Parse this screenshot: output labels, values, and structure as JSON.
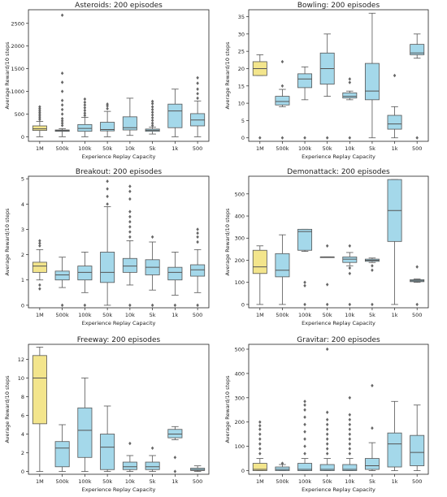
{
  "colors": {
    "highlight": "#f3e58c",
    "box": "#a4d8ea",
    "stroke": "#555555",
    "outlier": "#666666"
  },
  "chart_data": [
    {
      "type": "box",
      "title": "Asteroids: 200 episodes",
      "xlabel": "Experience Replay Capacity",
      "ylabel": "Average Reward/10 steps",
      "categories": [
        "1M",
        "500k",
        "100k",
        "50k",
        "10k",
        "5k",
        "1k",
        "500"
      ],
      "ylim": [
        -100,
        2800
      ],
      "yticks": [
        0,
        500,
        1000,
        1500,
        2000,
        2500
      ],
      "boxes": [
        {
          "whislo": 0,
          "q1": 140,
          "med": 175,
          "q3": 240,
          "whishi": 340,
          "fliers": [
            380,
            420,
            460,
            500,
            540,
            580,
            620,
            660
          ]
        },
        {
          "whislo": 0,
          "q1": 120,
          "med": 135,
          "q3": 150,
          "whishi": 180,
          "fliers": [
            250,
            300,
            350,
            400,
            500,
            600,
            700,
            800,
            1000,
            1200,
            1400,
            2680
          ]
        },
        {
          "whislo": 0,
          "q1": 120,
          "med": 185,
          "q3": 270,
          "whishi": 430,
          "fliers": [
            470,
            520,
            580,
            640,
            700,
            760,
            830
          ]
        },
        {
          "whislo": 0,
          "q1": 130,
          "med": 160,
          "q3": 320,
          "whishi": 560,
          "fliers": [
            620,
            680,
            720
          ]
        },
        {
          "whislo": 30,
          "q1": 150,
          "med": 200,
          "q3": 440,
          "whishi": 850,
          "fliers": []
        },
        {
          "whislo": 60,
          "q1": 120,
          "med": 145,
          "q3": 170,
          "whishi": 210,
          "fliers": [
            250,
            300,
            360,
            420,
            480,
            540,
            600,
            660,
            730,
            780
          ]
        },
        {
          "whislo": 0,
          "q1": 200,
          "med": 570,
          "q3": 720,
          "whishi": 1050,
          "fliers": []
        },
        {
          "whislo": 0,
          "q1": 240,
          "med": 370,
          "q3": 510,
          "whishi": 790,
          "fliers": [
            850,
            950,
            1050,
            1180,
            1300
          ]
        }
      ]
    },
    {
      "type": "box",
      "title": "Bowling: 200 episodes",
      "xlabel": "Experience Replay Capacity",
      "ylabel": "Average Reward/10 steps",
      "categories": [
        "1M",
        "500k",
        "100k",
        "50k",
        "10k",
        "5k",
        "1k",
        "500"
      ],
      "ylim": [
        -1,
        37
      ],
      "yticks": [
        0,
        5,
        10,
        15,
        20,
        25,
        30,
        35
      ],
      "boxes": [
        {
          "whislo": 18,
          "q1": 18,
          "med": 20,
          "q3": 22,
          "whishi": 24,
          "fliers": [
            0
          ]
        },
        {
          "whislo": 9,
          "q1": 9.5,
          "med": 10.5,
          "q3": 12,
          "whishi": 14,
          "fliers": [
            0,
            15,
            22
          ]
        },
        {
          "whislo": 11,
          "q1": 14.5,
          "med": 17,
          "q3": 18.5,
          "whishi": 20.5,
          "fliers": [
            0
          ]
        },
        {
          "whislo": 12,
          "q1": 15.5,
          "med": 20,
          "q3": 24.5,
          "whishi": 30,
          "fliers": [
            0
          ]
        },
        {
          "whislo": 11,
          "q1": 11.5,
          "med": 12,
          "q3": 13,
          "whishi": 13.5,
          "fliers": [
            0,
            16,
            17
          ]
        },
        {
          "whislo": 0,
          "q1": 11,
          "med": 13.5,
          "q3": 21.5,
          "whishi": 36,
          "fliers": []
        },
        {
          "whislo": 0,
          "q1": 2.5,
          "med": 4,
          "q3": 6.5,
          "whishi": 9,
          "fliers": [
            18
          ]
        },
        {
          "whislo": 23,
          "q1": 24,
          "med": 24.5,
          "q3": 27,
          "whishi": 30,
          "fliers": [
            0
          ]
        }
      ]
    },
    {
      "type": "box",
      "title": "Breakout: 200 episodes",
      "xlabel": "Experience Replay Capacity",
      "ylabel": "Average Reward/10 steps",
      "categories": [
        "1M",
        "500k",
        "100k",
        "50k",
        "10k",
        "5k",
        "1k",
        "500"
      ],
      "ylim": [
        -0.1,
        5.1
      ],
      "yticks": [
        0,
        1,
        2,
        3,
        4,
        5
      ],
      "boxes": [
        {
          "whislo": 1,
          "q1": 1.3,
          "med": 1.55,
          "q3": 1.7,
          "whishi": 2.2,
          "fliers": [
            0.65,
            0.8,
            2.35,
            2.45,
            2.55
          ]
        },
        {
          "whislo": 0.7,
          "q1": 1,
          "med": 1.2,
          "q3": 1.35,
          "whishi": 1.9,
          "fliers": [
            0
          ]
        },
        {
          "whislo": 0.5,
          "q1": 1,
          "med": 1.3,
          "q3": 1.55,
          "whishi": 2.1,
          "fliers": [
            0
          ]
        },
        {
          "whislo": 0,
          "q1": 0.9,
          "med": 1.3,
          "q3": 2.1,
          "whishi": 3.9,
          "fliers": [
            4,
            4.3,
            4.6,
            4.9
          ]
        },
        {
          "whislo": 0.8,
          "q1": 1.3,
          "med": 1.55,
          "q3": 1.85,
          "whishi": 2.55,
          "fliers": [
            0,
            2.7,
            2.9,
            3.1,
            3.3,
            3.5,
            3.7,
            4.2,
            4.5,
            4.7
          ]
        },
        {
          "whislo": 0.6,
          "q1": 1.2,
          "med": 1.5,
          "q3": 1.8,
          "whishi": 2.5,
          "fliers": [
            0,
            2.7
          ]
        },
        {
          "whislo": 0.4,
          "q1": 1,
          "med": 1.3,
          "q3": 1.5,
          "whishi": 2.1,
          "fliers": [
            0
          ]
        },
        {
          "whislo": 0.5,
          "q1": 1.15,
          "med": 1.4,
          "q3": 1.6,
          "whishi": 2.2,
          "fliers": [
            0,
            2.5,
            2.7,
            2.85,
            3
          ]
        }
      ]
    },
    {
      "type": "box",
      "title": "Demonattack: 200 episodes",
      "xlabel": "Experience Replay Capacity",
      "ylabel": "Average Reward/10 steps",
      "categories": [
        "1M",
        "500k",
        "100k",
        "50k",
        "10k",
        "5k",
        "1k",
        "500"
      ],
      "ylim": [
        -15,
        580
      ],
      "yticks": [
        0,
        100,
        200,
        300,
        400,
        500
      ],
      "boxes": [
        {
          "whislo": 0,
          "q1": 140,
          "med": 170,
          "q3": 245,
          "whishi": 265,
          "fliers": []
        },
        {
          "whislo": 0,
          "q1": 125,
          "med": 155,
          "q3": 230,
          "whishi": 315,
          "fliers": []
        },
        {
          "whislo": 240,
          "q1": 245,
          "med": 330,
          "q3": 340,
          "whishi": 340,
          "fliers": [
            0,
            85,
            100
          ]
        },
        {
          "whislo": 215,
          "q1": 215,
          "med": 215,
          "q3": 215,
          "whishi": 215,
          "fliers": [
            0,
            90,
            265
          ]
        },
        {
          "whislo": 175,
          "q1": 190,
          "med": 205,
          "q3": 215,
          "whishi": 235,
          "fliers": [
            0,
            140,
            165,
            265
          ]
        },
        {
          "whislo": 190,
          "q1": 195,
          "med": 200,
          "q3": 205,
          "whishi": 210,
          "fliers": [
            0,
            155,
            175
          ]
        },
        {
          "whislo": 0,
          "q1": 285,
          "med": 425,
          "q3": 565,
          "whishi": 565,
          "fliers": []
        },
        {
          "whislo": 100,
          "q1": 103,
          "med": 107,
          "q3": 112,
          "whishi": 115,
          "fliers": [
            0,
            170
          ]
        }
      ]
    },
    {
      "type": "box",
      "title": "Freeway: 200 episodes",
      "xlabel": "Experience Replay Capacity",
      "ylabel": "Average Reward/10 steps",
      "categories": [
        "1M",
        "500k",
        "100k",
        "50k",
        "10k",
        "5k",
        "1k",
        "500"
      ],
      "ylim": [
        -0.3,
        13.6
      ],
      "yticks": [
        0,
        2,
        4,
        6,
        8,
        10,
        12
      ],
      "boxes": [
        {
          "whislo": 0,
          "q1": 5.1,
          "med": 10,
          "q3": 12.4,
          "whishi": 13.3,
          "fliers": []
        },
        {
          "whislo": 0,
          "q1": 0.5,
          "med": 2.5,
          "q3": 3.2,
          "whishi": 5,
          "fliers": []
        },
        {
          "whislo": 0,
          "q1": 1.5,
          "med": 4.4,
          "q3": 6.8,
          "whishi": 10,
          "fliers": []
        },
        {
          "whislo": 0,
          "q1": 0.2,
          "med": 2.6,
          "q3": 4,
          "whishi": 7,
          "fliers": []
        },
        {
          "whislo": 0,
          "q1": 0.2,
          "med": 0.5,
          "q3": 1,
          "whishi": 1.7,
          "fliers": [
            3
          ]
        },
        {
          "whislo": 0,
          "q1": 0.2,
          "med": 0.5,
          "q3": 1,
          "whishi": 1.7,
          "fliers": [
            2.5
          ]
        },
        {
          "whislo": 3.4,
          "q1": 3.6,
          "med": 4,
          "q3": 4.5,
          "whishi": 4.8,
          "fliers": [
            0,
            1.5
          ]
        },
        {
          "whislo": 0,
          "q1": 0.1,
          "med": 0.2,
          "q3": 0.35,
          "whishi": 0.6,
          "fliers": []
        }
      ]
    },
    {
      "type": "box",
      "title": "Gravitar: 200 episodes",
      "xlabel": "Experience Replay Capacity",
      "ylabel": "Average Reward/10 steps",
      "categories": [
        "1M",
        "500k",
        "100k",
        "50k",
        "10k",
        "5k",
        "1k",
        "500"
      ],
      "ylim": [
        -15,
        520
      ],
      "yticks": [
        0,
        100,
        200,
        300,
        400,
        500
      ],
      "boxes": [
        {
          "whislo": 0,
          "q1": 0,
          "med": 5,
          "q3": 30,
          "whishi": 50,
          "fliers": [
            70,
            90,
            110,
            130,
            150,
            170,
            185,
            200
          ]
        },
        {
          "whislo": 0,
          "q1": 0,
          "med": 5,
          "q3": 15,
          "whishi": 25,
          "fliers": [
            30
          ]
        },
        {
          "whislo": 0,
          "q1": 0,
          "med": 5,
          "q3": 30,
          "whishi": 50,
          "fliers": [
            70,
            100,
            130,
            160,
            190,
            220,
            250,
            270,
            285
          ]
        },
        {
          "whislo": 0,
          "q1": 0,
          "med": 5,
          "q3": 25,
          "whishi": 50,
          "fliers": [
            70,
            90,
            110,
            130,
            150,
            170,
            190,
            210,
            240,
            500
          ]
        },
        {
          "whislo": 0,
          "q1": 0,
          "med": 5,
          "q3": 25,
          "whishi": 50,
          "fliers": [
            70,
            90,
            110,
            130,
            150,
            170,
            190,
            210,
            230,
            300
          ]
        },
        {
          "whislo": 0,
          "q1": 5,
          "med": 20,
          "q3": 50,
          "whishi": 115,
          "fliers": [
            175,
            350
          ]
        },
        {
          "whislo": 0,
          "q1": 15,
          "med": 110,
          "q3": 155,
          "whishi": 285,
          "fliers": []
        },
        {
          "whislo": 0,
          "q1": 20,
          "med": 75,
          "q3": 145,
          "whishi": 270,
          "fliers": []
        }
      ]
    }
  ]
}
